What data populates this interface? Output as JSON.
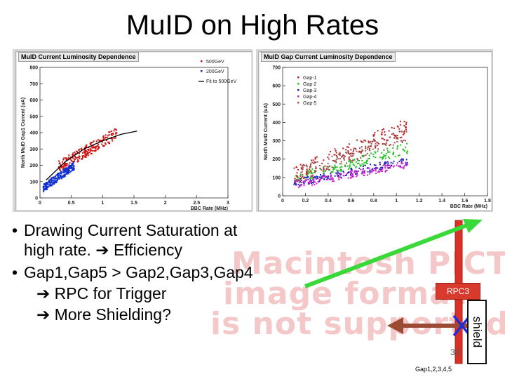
{
  "slide": {
    "title": "MuID on High Rates",
    "bullets": [
      "Drawing Current Saturation at",
      "high rate.",
      "Efficiency",
      "Gap1,Gap5 > Gap2,Gap3,Gap4",
      "RPC for Trigger",
      "More Shielding?"
    ],
    "placeholder_lines": [
      "Macintosh PICT",
      "image format",
      "is not supported"
    ],
    "diagram": {
      "rpc_label": "RPC3",
      "shield_label": "shield",
      "gap_label": "Gap1,2,3,4,5",
      "page_number": "33"
    },
    "colors": {
      "green_arrow": "#3ad93a",
      "brown_arrow": "#9b4a33",
      "rod": "#d8312a",
      "blue_x": "#1d2fd6"
    }
  },
  "chart_data": [
    {
      "type": "scatter",
      "title": "MuID Current Luminosity Dependence",
      "xlabel": "BBC Rate (MHz)",
      "ylabel": "North MuID Gap1 Current (uA)",
      "xlim": [
        0,
        3
      ],
      "ylim": [
        0,
        800
      ],
      "xticks": [
        "0",
        "0.5",
        "1",
        "1.5",
        "2",
        "2.5",
        "3"
      ],
      "yticks": [
        "0",
        "100",
        "200",
        "300",
        "400",
        "500",
        "600",
        "700",
        "800"
      ],
      "legend": [
        "500GeV",
        "200GeV",
        "Fit to 500GeV"
      ],
      "series": [
        {
          "name": "500GeV",
          "color": "#d01010",
          "x_range": [
            0.3,
            1.25
          ],
          "y_at_min": 190,
          "y_at_max": 400
        },
        {
          "name": "200GeV",
          "color": "#1030d0",
          "x_range": [
            0.05,
            0.55
          ],
          "y_at_min": 60,
          "y_at_max": 200
        },
        {
          "name": "Fit to 500GeV",
          "color": "#000000",
          "x": [
            0.1,
            0.4,
            0.7,
            1.0,
            1.3,
            1.55
          ],
          "y": [
            110,
            220,
            300,
            350,
            390,
            410
          ]
        }
      ]
    },
    {
      "type": "scatter",
      "title": "MuID Gap Current Luminosity Dependence",
      "xlabel": "BBC Rate (MHz)",
      "ylabel": "North MuID Current (uA)",
      "xlim": [
        0,
        1.8
      ],
      "ylim": [
        0,
        700
      ],
      "xticks": [
        "0",
        "0.2",
        "0.4",
        "0.6",
        "0.8",
        "1",
        "1.2",
        "1.4",
        "1.6",
        "1.8"
      ],
      "yticks": [
        "0",
        "100",
        "200",
        "300",
        "400",
        "500",
        "600",
        "700"
      ],
      "legend": [
        "Gap-1",
        "Gap-2",
        "Gap-3",
        "Gap-4",
        "Gap-5"
      ],
      "series": [
        {
          "name": "Gap-1",
          "color": "#b82020",
          "x_range": [
            0.1,
            1.1
          ],
          "y_at_min": 120,
          "y_at_max": 380
        },
        {
          "name": "Gap-2",
          "color": "#20c020",
          "x_range": [
            0.1,
            1.1
          ],
          "y_at_min": 90,
          "y_at_max": 260
        },
        {
          "name": "Gap-3",
          "color": "#2020c0",
          "x_range": [
            0.1,
            1.1
          ],
          "y_at_min": 70,
          "y_at_max": 190
        },
        {
          "name": "Gap-4",
          "color": "#d020d0",
          "x_range": [
            0.1,
            1.1
          ],
          "y_at_min": 60,
          "y_at_max": 170
        },
        {
          "name": "Gap-5",
          "color": "#a05050",
          "x_range": [
            0.1,
            1.1
          ],
          "y_at_min": 110,
          "y_at_max": 330
        }
      ]
    }
  ]
}
